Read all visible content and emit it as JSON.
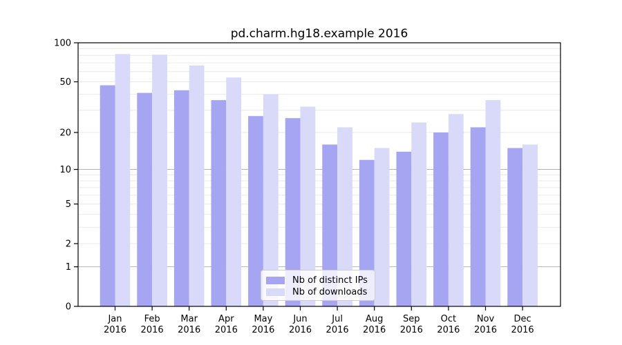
{
  "title": "pd.charm.hg18.example 2016",
  "colors": {
    "ips": "#a5a5f2",
    "downloads": "#d9d9f9",
    "grid_major": "#b4b4b4",
    "grid_minor": "#eaeaea",
    "axis": "#000000",
    "tick_label": "#000000",
    "legend_border": "#cccccc"
  },
  "legend": {
    "items": [
      {
        "label": "Nb of distinct IPs",
        "color_key": "ips"
      },
      {
        "label": "Nb of downloads",
        "color_key": "downloads"
      }
    ]
  },
  "chart_data": {
    "type": "bar",
    "title": "pd.charm.hg18.example 2016",
    "categories": [
      "Jan",
      "Feb",
      "Mar",
      "Apr",
      "May",
      "Jun",
      "Jul",
      "Aug",
      "Sep",
      "Oct",
      "Nov",
      "Dec"
    ],
    "year_label": "2016",
    "series": [
      {
        "name": "Nb of distinct IPs",
        "values": [
          47,
          41,
          43,
          36,
          27,
          26,
          16,
          12,
          14,
          20,
          22,
          15
        ]
      },
      {
        "name": "Nb of downloads",
        "values": [
          82,
          81,
          67,
          54,
          40,
          32,
          22,
          15,
          24,
          28,
          36,
          16
        ]
      }
    ],
    "xlabel": "",
    "ylabel": "",
    "yscale": "log1p",
    "ylim": [
      0,
      100
    ],
    "yticks": [
      0,
      1,
      2,
      5,
      10,
      20,
      50,
      100
    ],
    "grid_major_at": [
      1,
      10
    ],
    "grid_minor_at": [
      2,
      3,
      4,
      5,
      6,
      7,
      8,
      9,
      20,
      30,
      40,
      50,
      60,
      70,
      80,
      90
    ],
    "grid": "horizontal",
    "legend_position": "lower-center"
  }
}
